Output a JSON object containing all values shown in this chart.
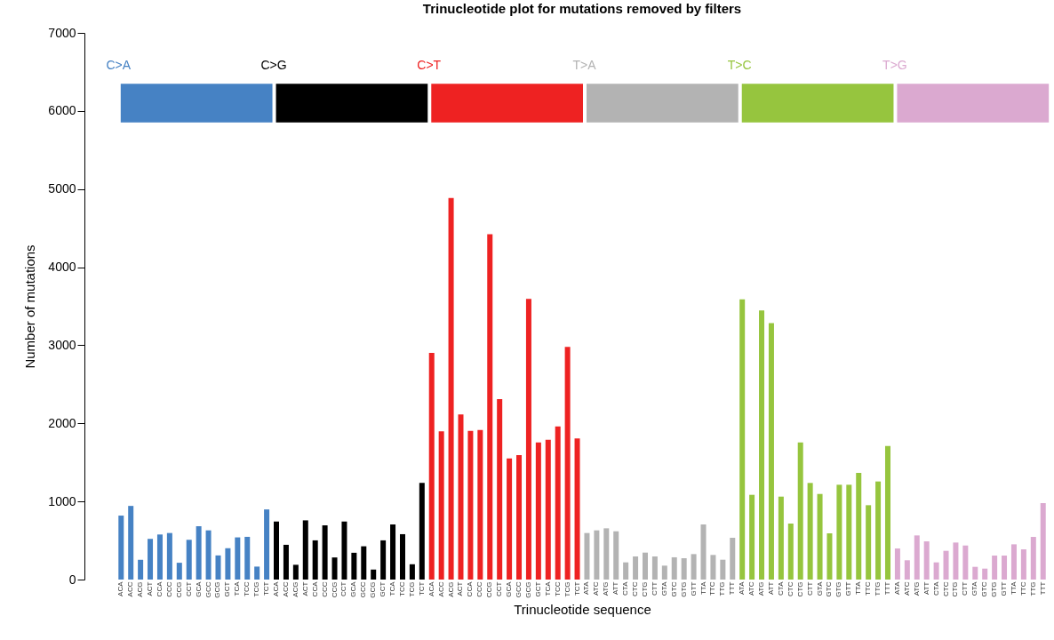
{
  "chart_data": {
    "type": "bar",
    "title": "Trinucleotide plot for mutations removed by filters",
    "xlabel": "Trinucleotide sequence",
    "ylabel": "Number of mutations",
    "categories": [
      "ACA",
      "ACC",
      "ACG",
      "ACT",
      "CCA",
      "CCC",
      "CCG",
      "CCT",
      "GCA",
      "GCC",
      "GCG",
      "GCT",
      "TCA",
      "TCC",
      "TCG",
      "TCT",
      "ACA",
      "ACC",
      "ACG",
      "ACT",
      "CCA",
      "CCC",
      "CCG",
      "CCT",
      "GCA",
      "GCC",
      "GCG",
      "GCT",
      "TCA",
      "TCC",
      "TCG",
      "TCT",
      "ACA",
      "ACC",
      "ACG",
      "ACT",
      "CCA",
      "CCC",
      "CCG",
      "CCT",
      "GCA",
      "GCC",
      "GCG",
      "GCT",
      "TCA",
      "TCC",
      "TCG",
      "TCT",
      "ATA",
      "ATC",
      "ATG",
      "ATT",
      "CTA",
      "CTC",
      "CTG",
      "CTT",
      "GTA",
      "GTC",
      "GTG",
      "GTT",
      "TTA",
      "TTC",
      "TTG",
      "TTT",
      "ATA",
      "ATC",
      "ATG",
      "ATT",
      "CTA",
      "CTC",
      "CTG",
      "CTT",
      "GTA",
      "GTC",
      "GTG",
      "GTT",
      "TTA",
      "TTC",
      "TTG",
      "TTT",
      "ATA",
      "ATC",
      "ATG",
      "ATT",
      "CTA",
      "CTC",
      "CTG",
      "CTT",
      "GTA",
      "GTC",
      "GTG",
      "GTT",
      "TTA",
      "TTC",
      "TTG",
      "TTT"
    ],
    "series": [
      {
        "name": "C>A",
        "color": "#4682c4",
        "values": [
          819,
          943,
          253,
          521,
          577,
          596,
          215,
          509,
          683,
          630,
          309,
          400,
          540,
          547,
          166,
          898,
          null,
          null,
          null,
          null,
          null,
          null,
          null,
          null,
          null,
          null,
          null,
          null,
          null,
          null,
          null,
          null,
          null,
          null,
          null,
          null,
          null,
          null,
          null,
          null,
          null,
          null,
          null,
          null,
          null,
          null,
          null,
          null,
          null,
          null,
          null,
          null,
          null,
          null,
          null,
          null,
          null,
          null,
          null,
          null,
          null,
          null,
          null,
          null,
          null,
          null,
          null,
          null,
          null,
          null,
          null,
          null,
          null,
          null,
          null,
          null,
          null,
          null,
          null,
          null,
          null,
          null,
          null,
          null,
          null,
          null,
          null,
          null,
          null,
          null,
          null,
          null,
          null,
          null,
          null,
          null
        ]
      },
      {
        "name": "C>G",
        "color": "#000000",
        "values": [
          null,
          null,
          null,
          null,
          null,
          null,
          null,
          null,
          null,
          null,
          null,
          null,
          null,
          null,
          null,
          null,
          743,
          445,
          189,
          758,
          502,
          694,
          283,
          743,
          343,
          426,
          128,
          502,
          706,
          581,
          196,
          1238,
          null,
          null,
          null,
          null,
          null,
          null,
          null,
          null,
          null,
          null,
          null,
          null,
          null,
          null,
          null,
          null,
          null,
          null,
          null,
          null,
          null,
          null,
          null,
          null,
          null,
          null,
          null,
          null,
          null,
          null,
          null,
          null,
          null,
          null,
          null,
          null,
          null,
          null,
          null,
          null,
          null,
          null,
          null,
          null,
          null,
          null,
          null,
          null,
          null,
          null,
          null,
          null,
          null,
          null,
          null,
          null,
          null,
          null,
          null,
          null,
          null,
          null,
          null,
          null
        ]
      },
      {
        "name": "C>T",
        "color": "#ee2222",
        "values": [
          null,
          null,
          null,
          null,
          null,
          null,
          null,
          null,
          null,
          null,
          null,
          null,
          null,
          null,
          null,
          null,
          null,
          null,
          null,
          null,
          null,
          null,
          null,
          null,
          null,
          null,
          null,
          null,
          null,
          null,
          null,
          null,
          2902,
          1897,
          4886,
          2113,
          1904,
          1916,
          4423,
          2310,
          1552,
          1593,
          3593,
          1756,
          1791,
          1961,
          2978,
          1806,
          null,
          null,
          null,
          null,
          null,
          null,
          null,
          null,
          null,
          null,
          null,
          null,
          null,
          null,
          null,
          null,
          null,
          null,
          null,
          null,
          null,
          null,
          null,
          null,
          null,
          null,
          null,
          null,
          null,
          null,
          null,
          null,
          null,
          null,
          null,
          null,
          null,
          null,
          null,
          null,
          null,
          null,
          null,
          null,
          null,
          null,
          null,
          null
        ]
      },
      {
        "name": "T>A",
        "color": "#b3b3b3",
        "values": [
          null,
          null,
          null,
          null,
          null,
          null,
          null,
          null,
          null,
          null,
          null,
          null,
          null,
          null,
          null,
          null,
          null,
          null,
          null,
          null,
          null,
          null,
          null,
          null,
          null,
          null,
          null,
          null,
          null,
          null,
          null,
          null,
          null,
          null,
          null,
          null,
          null,
          null,
          null,
          null,
          null,
          null,
          null,
          null,
          null,
          null,
          null,
          null,
          596,
          630,
          656,
          618,
          220,
          296,
          345,
          296,
          178,
          285,
          273,
          326,
          706,
          315,
          254,
          535,
          null,
          null,
          null,
          null,
          null,
          null,
          null,
          null,
          null,
          null,
          null,
          null,
          null,
          null,
          null,
          null,
          null,
          null,
          null,
          null,
          null,
          null,
          null,
          null,
          null,
          null,
          null,
          null,
          null,
          null,
          null,
          null
        ]
      },
      {
        "name": "T>C",
        "color": "#96c53e",
        "values": [
          null,
          null,
          null,
          null,
          null,
          null,
          null,
          null,
          null,
          null,
          null,
          null,
          null,
          null,
          null,
          null,
          null,
          null,
          null,
          null,
          null,
          null,
          null,
          null,
          null,
          null,
          null,
          null,
          null,
          null,
          null,
          null,
          null,
          null,
          null,
          null,
          null,
          null,
          null,
          null,
          null,
          null,
          null,
          null,
          null,
          null,
          null,
          null,
          null,
          null,
          null,
          null,
          null,
          null,
          null,
          null,
          null,
          null,
          null,
          null,
          null,
          null,
          null,
          null,
          3589,
          1085,
          3445,
          3285,
          1062,
          717,
          1756,
          1237,
          1096,
          592,
          1214,
          1214,
          1366,
          952,
          1256,
          1711,
          null,
          null,
          null,
          null,
          null,
          null,
          null,
          null,
          null,
          null,
          null,
          null,
          null,
          null,
          null,
          null
        ]
      },
      {
        "name": "T>G",
        "color": "#dba9d0",
        "values": [
          null,
          null,
          null,
          null,
          null,
          null,
          null,
          null,
          null,
          null,
          null,
          null,
          null,
          null,
          null,
          null,
          null,
          null,
          null,
          null,
          null,
          null,
          null,
          null,
          null,
          null,
          null,
          null,
          null,
          null,
          null,
          null,
          null,
          null,
          null,
          null,
          null,
          null,
          null,
          null,
          null,
          null,
          null,
          null,
          null,
          null,
          null,
          null,
          null,
          null,
          null,
          null,
          null,
          null,
          null,
          null,
          null,
          null,
          null,
          null,
          null,
          null,
          null,
          null,
          null,
          null,
          null,
          null,
          null,
          null,
          null,
          null,
          null,
          null,
          null,
          null,
          null,
          null,
          null,
          null,
          398,
          247,
          565,
          489,
          220,
          368,
          474,
          436,
          163,
          140,
          307,
          307,
          451,
          387,
          546,
          979
        ]
      }
    ],
    "ylim": [
      0,
      7000
    ],
    "yticks": [
      0,
      1000,
      2000,
      3000,
      4000,
      5000,
      6000,
      7000
    ],
    "grid": false,
    "legend": "top"
  }
}
